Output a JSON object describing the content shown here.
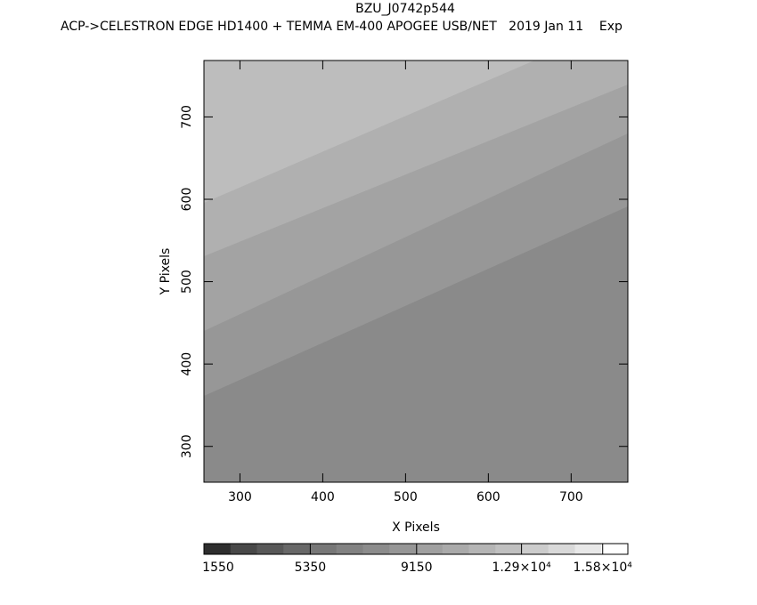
{
  "chart_data": {
    "type": "image",
    "title": "BZU_J0742p544",
    "subtitle": "ACP->CELESTRON EDGE HD1400 + TEMMA EM-400 APOGEE USB/NET   2019 Jan 11    Exp",
    "x_label": "X Pixels",
    "y_label": "Y Pixels",
    "xlim": [
      256.5,
      768.5
    ],
    "ylim": [
      256.5,
      768.5
    ],
    "xticks": [
      300,
      400,
      500,
      600,
      700
    ],
    "yticks": [
      300,
      400,
      500,
      600,
      700
    ],
    "colorbar": {
      "lim": [
        1550,
        16700
      ],
      "ticks": [
        1550,
        5350,
        9150,
        {
          "value": 12900,
          "label": "1.29×10⁴"
        },
        {
          "value": 15800,
          "label": "1.58×10⁴"
        }
      ],
      "colors": [
        "#2e2e2e",
        "#484848",
        "#585858",
        "#686868",
        "#777777",
        "#828282",
        "#8c8c8c",
        "#969696",
        "#a0a0a0",
        "#aaaaaa",
        "#b5b5b5",
        "#c0c0c0",
        "#cccccc",
        "#d9d9d9",
        "#e8e8e8",
        "#ffffff"
      ]
    }
  }
}
